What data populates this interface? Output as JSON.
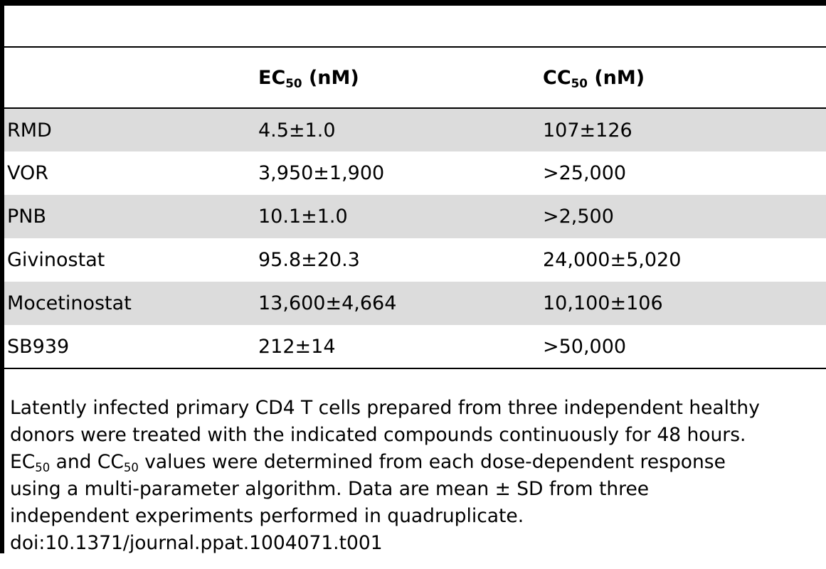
{
  "table": {
    "columns": [
      "",
      "EC",
      "50",
      "(nM)",
      "CC",
      "50",
      "(nM)"
    ],
    "header": {
      "compound": "",
      "ec_prefix": "EC",
      "ec_sub": "50",
      "ec_unit": " (nM)",
      "cc_prefix": "CC",
      "cc_sub": "50",
      "cc_unit": " (nM)"
    },
    "rows": [
      {
        "compound": "RMD",
        "ec50": "4.5±1.0",
        "cc50": "107±126"
      },
      {
        "compound": "VOR",
        "ec50": "3,950±1,900",
        "cc50": ">25,000"
      },
      {
        "compound": "PNB",
        "ec50": "10.1±1.0",
        "cc50": ">2,500"
      },
      {
        "compound": "Givinostat",
        "ec50": "95.8±20.3",
        "cc50": "24,000±5,020"
      },
      {
        "compound": "Mocetinostat",
        "ec50": "13,600±4,664",
        "cc50": "10,100±106"
      },
      {
        "compound": "SB939",
        "ec50": "212±14",
        "cc50": ">50,000"
      }
    ]
  },
  "footnote": {
    "line1": "Latently infected primary CD4 T cells prepared from three independent healthy",
    "line2": "donors were treated with the indicated compounds continuously for 48 hours.",
    "line3_ec": "EC",
    "line3_ec_sub": "50",
    "line3_and": " and ",
    "line3_cc": "CC",
    "line3_cc_sub": "50",
    "line3_rest": " values were determined from each dose-dependent response",
    "line4": "using a multi-parameter algorithm. Data are mean ± SD from three",
    "line5": "independent experiments performed in quadruplicate.",
    "doi": "doi:10.1371/journal.ppat.1004071.t001"
  }
}
